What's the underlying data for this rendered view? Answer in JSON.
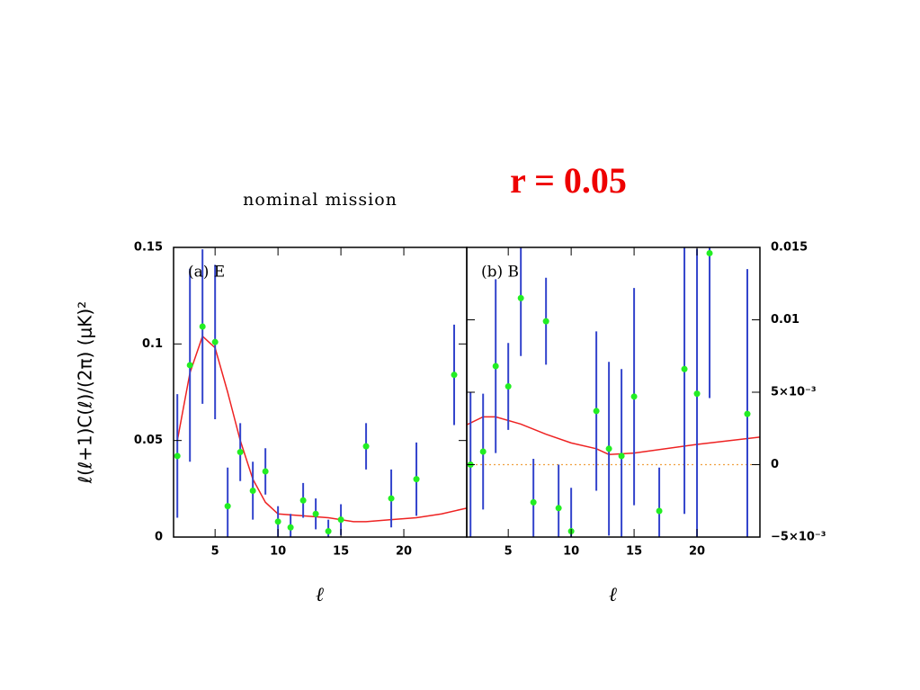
{
  "title": "r = 0.05",
  "subtitle": "nominal mission",
  "ylabel": "ℓ(ℓ+1)C(ℓ)/(2π) (μK)²",
  "chart_data": [
    {
      "type": "scatter",
      "panel_label": "(a) E",
      "xlabel": "ℓ",
      "xlim": [
        1.7,
        25
      ],
      "xticks": [
        5,
        10,
        15,
        20
      ],
      "ylim": [
        0,
        0.15
      ],
      "yticks": [
        0,
        0.05,
        0.1,
        0.15
      ],
      "yaxis_side": "left",
      "points": {
        "color": "#22ee22",
        "error_color": "#3344cc",
        "x": [
          2,
          3,
          4,
          5,
          6,
          7,
          8,
          9,
          10,
          11,
          12,
          13,
          14,
          15,
          17,
          19,
          21,
          24
        ],
        "values": [
          0.042,
          0.089,
          0.109,
          0.101,
          0.016,
          0.044,
          0.024,
          0.034,
          0.008,
          0.005,
          0.019,
          0.012,
          0.003,
          0.009,
          0.047,
          0.02,
          0.03,
          0.084
        ],
        "errors": [
          0.032,
          0.05,
          0.04,
          0.04,
          0.02,
          0.015,
          0.015,
          0.012,
          0.008,
          0.007,
          0.009,
          0.008,
          0.006,
          0.008,
          0.012,
          0.015,
          0.019,
          0.026
        ]
      },
      "model": {
        "color": "#ee2222",
        "x": [
          2,
          3,
          4,
          5,
          6,
          7,
          8,
          9,
          10,
          12,
          14,
          16,
          17,
          19,
          21,
          23,
          25
        ],
        "values": [
          0.05,
          0.085,
          0.104,
          0.098,
          0.075,
          0.05,
          0.03,
          0.018,
          0.012,
          0.011,
          0.01,
          0.008,
          0.008,
          0.009,
          0.01,
          0.012,
          0.015
        ]
      }
    },
    {
      "type": "scatter",
      "panel_label": "(b) B",
      "xlabel": "ℓ",
      "xlim": [
        1.7,
        25
      ],
      "xticks": [
        5,
        10,
        15,
        20
      ],
      "ylim": [
        -0.005,
        0.015
      ],
      "yticks": [
        {
          "value": -0.005,
          "label": "−5×10⁻³"
        },
        0,
        {
          "value": 0.005,
          "label": "5×10⁻³"
        },
        0.01,
        0.015
      ],
      "yaxis_side": "right",
      "reference_line": 0,
      "reference_color": "#f0a040",
      "points": {
        "color": "#22ee22",
        "error_color": "#3344cc",
        "x": [
          2,
          3,
          4,
          5,
          6,
          7,
          8,
          9,
          10,
          12,
          13,
          14,
          15,
          17,
          19,
          20,
          21,
          24
        ],
        "values": [
          0,
          0.0009,
          0.0068,
          0.0054,
          0.0115,
          -0.0026,
          0.0099,
          -0.003,
          -0.0046,
          0.0037,
          0.0011,
          0.0006,
          0.0047,
          -0.0032,
          0.0066,
          0.0049,
          0.0146,
          0.0035
        ],
        "errors": [
          0.005,
          0.004,
          0.006,
          0.003,
          0.004,
          0.003,
          0.003,
          0.003,
          0.003,
          0.0055,
          0.006,
          0.006,
          0.0075,
          0.003,
          0.01,
          0.01,
          0.01,
          0.01
        ]
      },
      "model": {
        "color": "#ee2222",
        "x": [
          1.7,
          3,
          4,
          6,
          8,
          10,
          12,
          13,
          15,
          20,
          25
        ],
        "values": [
          0.00275,
          0.0033,
          0.0033,
          0.0028,
          0.0021,
          0.0015,
          0.0011,
          0.0007,
          0.0008,
          0.0014,
          0.0019
        ]
      }
    }
  ]
}
